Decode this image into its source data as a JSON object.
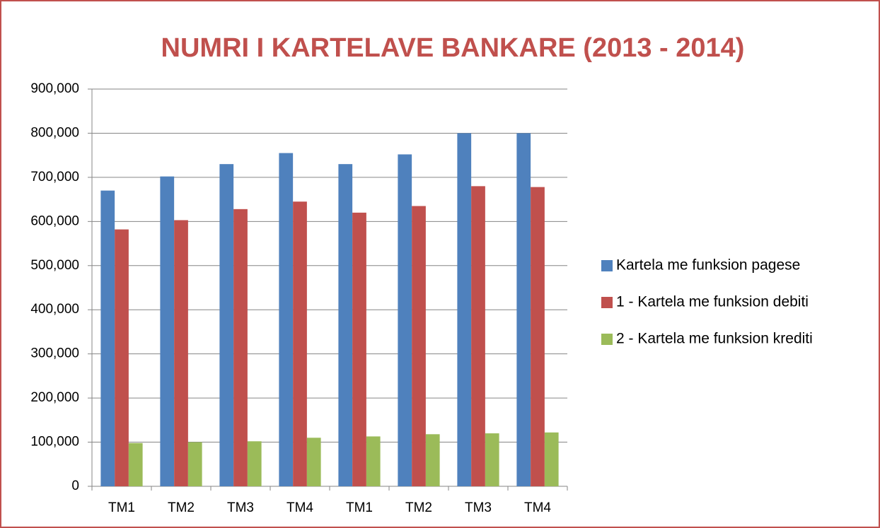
{
  "chart_data": {
    "type": "bar",
    "title": "NUMRI I KARTELAVE BANKARE (2013 - 2014)",
    "categories": [
      "TM1",
      "TM2",
      "TM3",
      "TM4",
      "TM1",
      "TM2",
      "TM3",
      "TM4"
    ],
    "series": [
      {
        "name": "Kartela me funksion pagese",
        "color": "#4f81bd",
        "values": [
          670000,
          702000,
          730000,
          755000,
          730000,
          752000,
          800000,
          800000
        ]
      },
      {
        "name": "1 - Kartela me funksion debiti",
        "color": "#c0504d",
        "values": [
          582000,
          603000,
          628000,
          645000,
          620000,
          635000,
          680000,
          678000
        ]
      },
      {
        "name": "2 - Kartela me funksion krediti",
        "color": "#9bbb59",
        "values": [
          98000,
          100000,
          102000,
          110000,
          113000,
          118000,
          120000,
          122000
        ]
      }
    ],
    "ylim": [
      0,
      900000
    ],
    "yticks": [
      0,
      {
        "value": 100000,
        "label": "100,000"
      },
      {
        "value": 200000,
        "label": "200,000"
      },
      {
        "value": 300000,
        "label": "300,000"
      },
      {
        "value": 400000,
        "label": "400,000"
      },
      {
        "value": 500000,
        "label": "500,000"
      },
      {
        "value": 600000,
        "label": "600,000"
      },
      {
        "value": 700000,
        "label": "700,000"
      },
      {
        "value": 800000,
        "label": "800,000"
      },
      {
        "value": 900000,
        "label": "900,000"
      }
    ],
    "grid": true,
    "legend": "right"
  }
}
